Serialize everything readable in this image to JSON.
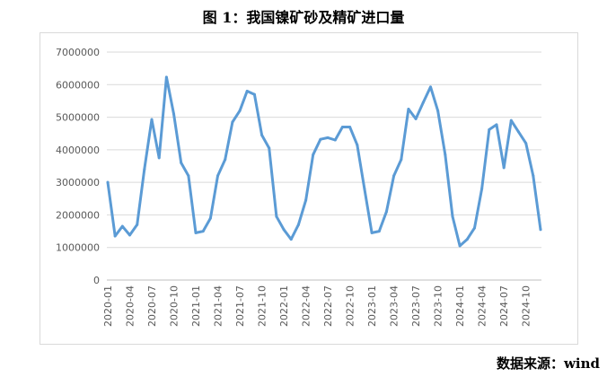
{
  "chart_data": {
    "type": "line",
    "title": "图 1：我国镍矿砂及精矿进口量",
    "xlabel": "",
    "ylabel": "",
    "ylim": [
      0,
      7000000
    ],
    "yticks": [
      0,
      1000000,
      2000000,
      3000000,
      4000000,
      5000000,
      6000000,
      7000000
    ],
    "ytick_labels": [
      "0",
      "1000000",
      "2000000",
      "3000000",
      "4000000",
      "5000000",
      "6000000",
      "7000000"
    ],
    "xtick_labels": [
      "2020-01",
      "2020-04",
      "2020-07",
      "2020-10",
      "2021-01",
      "2021-04",
      "2021-07",
      "2021-10",
      "2022-01",
      "2022-04",
      "2022-07",
      "2022-10",
      "2023-01",
      "2023-04",
      "2023-07",
      "2023-10",
      "2024-01",
      "2024-04",
      "2024-07",
      "2024-10"
    ],
    "grid": true,
    "line_color": "#5b9bd5",
    "x": [
      "2020-01",
      "2020-02",
      "2020-03",
      "2020-04",
      "2020-05",
      "2020-06",
      "2020-07",
      "2020-08",
      "2020-09",
      "2020-10",
      "2020-11",
      "2020-12",
      "2021-01",
      "2021-02",
      "2021-03",
      "2021-04",
      "2021-05",
      "2021-06",
      "2021-07",
      "2021-08",
      "2021-09",
      "2021-10",
      "2021-11",
      "2021-12",
      "2022-01",
      "2022-02",
      "2022-03",
      "2022-04",
      "2022-05",
      "2022-06",
      "2022-07",
      "2022-08",
      "2022-09",
      "2022-10",
      "2022-11",
      "2022-12",
      "2023-01",
      "2023-02",
      "2023-03",
      "2023-04",
      "2023-05",
      "2023-06",
      "2023-07",
      "2023-08",
      "2023-09",
      "2023-10",
      "2023-11",
      "2023-12",
      "2024-01",
      "2024-02",
      "2024-03",
      "2024-04",
      "2024-05",
      "2024-06",
      "2024-07",
      "2024-08",
      "2024-09",
      "2024-10",
      "2024-11",
      "2024-12"
    ],
    "series": [
      {
        "values": [
          3000000,
          1350000,
          1650000,
          1380000,
          1700000,
          3400000,
          4930000,
          3750000,
          6230000,
          5100000,
          3600000,
          3200000,
          1450000,
          1500000,
          1900000,
          3200000,
          3700000,
          4850000,
          5200000,
          5800000,
          5700000,
          4450000,
          4050000,
          1950000,
          1550000,
          1250000,
          1700000,
          2450000,
          3850000,
          4320000,
          4370000,
          4300000,
          4700000,
          4700000,
          4150000,
          2800000,
          1450000,
          1500000,
          2100000,
          3200000,
          3700000,
          5250000,
          4950000,
          5450000,
          5930000,
          5200000,
          3850000,
          1950000,
          1050000,
          1250000,
          1600000,
          2800000,
          4620000,
          4770000,
          3450000,
          4900000,
          4550000,
          4200000,
          3200000,
          1550000
        ]
      }
    ]
  },
  "source": "数据来源：wind"
}
